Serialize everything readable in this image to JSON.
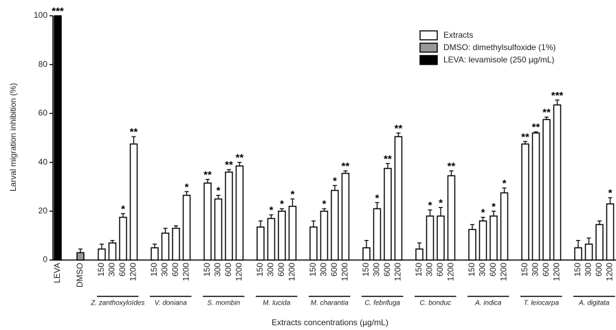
{
  "chart_data": {
    "type": "bar",
    "y_label": "Larval migration inhibition  (%)",
    "x_label": "Extracts concentrations (µg/mL)",
    "ylim": [
      0,
      100
    ],
    "yticks": [
      0,
      20,
      40,
      60,
      80,
      100
    ],
    "categories": [
      "LEVA",
      "DMSO",
      "150",
      "300",
      "600",
      "1200",
      "150",
      "300",
      "600",
      "1200",
      "150",
      "300",
      "600",
      "1200",
      "150",
      "300",
      "600",
      "1200",
      "150",
      "300",
      "600",
      "1200",
      "150",
      "300",
      "600",
      "1200",
      "150",
      "300",
      "600",
      "1200",
      "150",
      "300",
      "600",
      "1200",
      "150",
      "300",
      "600",
      "1200",
      "150",
      "300",
      "600",
      "1200"
    ],
    "groups": [
      "Z. zanthoxyloïdes",
      "V. doniana",
      "S. mombin",
      "M. lucida",
      "M. charantia",
      "C. febrifuga",
      "C. bonduc",
      "A. indica",
      "T. leiocarpa",
      "A. digitata"
    ],
    "series": [
      {
        "name": "Extracts",
        "color": "#ffffff",
        "values": [
          null,
          null,
          4.5,
          7,
          17.5,
          47.5,
          5,
          11,
          13,
          26.5,
          31.5,
          25,
          36,
          38.5,
          13.5,
          17,
          20,
          22,
          13.5,
          20,
          28.5,
          35.5,
          5,
          21,
          37.5,
          50.5,
          4.5,
          18,
          18,
          34.5,
          12.5,
          16,
          18,
          27.5,
          47.5,
          52,
          57.5,
          63.5,
          5,
          6.5,
          14.5,
          23
        ],
        "errors": [
          null,
          null,
          2,
          1,
          1.5,
          3,
          1.5,
          2,
          1,
          1.5,
          1.5,
          1.5,
          1,
          1.5,
          2.5,
          1.5,
          1,
          3,
          2.5,
          1,
          2,
          1,
          3,
          2.5,
          2,
          1.5,
          2.5,
          2.5,
          3.5,
          2,
          2,
          1.5,
          2,
          2,
          1,
          0.5,
          1,
          2,
          3,
          2.5,
          1.5,
          2.5
        ],
        "annotations": [
          null,
          null,
          null,
          null,
          "*",
          "**",
          null,
          null,
          null,
          "*",
          "**",
          "*",
          "**",
          "**",
          null,
          "*",
          "*",
          "*",
          null,
          "*",
          "*",
          "**",
          null,
          "*",
          "**",
          "**",
          null,
          "*",
          "*",
          "**",
          null,
          "*",
          "*",
          "*",
          "**",
          "**",
          "**",
          "***",
          null,
          null,
          null,
          "*"
        ]
      },
      {
        "name": "DMSO: dimethylsulfoxide (1%)",
        "color": "#999999",
        "values": [
          null,
          3,
          null,
          null,
          null,
          null,
          null,
          null,
          null,
          null,
          null,
          null,
          null,
          null,
          null,
          null,
          null,
          null,
          null,
          null,
          null,
          null,
          null,
          null,
          null,
          null,
          null,
          null,
          null,
          null,
          null,
          null,
          null,
          null,
          null,
          null,
          null,
          null,
          null,
          null,
          null,
          null
        ],
        "errors": [
          null,
          1.5,
          null,
          null,
          null,
          null,
          null,
          null,
          null,
          null,
          null,
          null,
          null,
          null,
          null,
          null,
          null,
          null,
          null,
          null,
          null,
          null,
          null,
          null,
          null,
          null,
          null,
          null,
          null,
          null,
          null,
          null,
          null,
          null,
          null,
          null,
          null,
          null,
          null,
          null,
          null,
          null
        ],
        "annotations": [
          null,
          null,
          null,
          null,
          null,
          null,
          null,
          null,
          null,
          null,
          null,
          null,
          null,
          null,
          null,
          null,
          null,
          null,
          null,
          null,
          null,
          null,
          null,
          null,
          null,
          null,
          null,
          null,
          null,
          null,
          null,
          null,
          null,
          null,
          null,
          null,
          null,
          null,
          null,
          null,
          null,
          null
        ]
      },
      {
        "name": "LEVA: levamisole (250 µg/mL)",
        "color": "#000000",
        "values": [
          100,
          null,
          null,
          null,
          null,
          null,
          null,
          null,
          null,
          null,
          null,
          null,
          null,
          null,
          null,
          null,
          null,
          null,
          null,
          null,
          null,
          null,
          null,
          null,
          null,
          null,
          null,
          null,
          null,
          null,
          null,
          null,
          null,
          null,
          null,
          null,
          null,
          null,
          null,
          null,
          null,
          null
        ],
        "errors": [
          null,
          null,
          null,
          null,
          null,
          null,
          null,
          null,
          null,
          null,
          null,
          null,
          null,
          null,
          null,
          null,
          null,
          null,
          null,
          null,
          null,
          null,
          null,
          null,
          null,
          null,
          null,
          null,
          null,
          null,
          null,
          null,
          null,
          null,
          null,
          null,
          null,
          null,
          null,
          null,
          null,
          null
        ],
        "annotations": [
          "***",
          null,
          null,
          null,
          null,
          null,
          null,
          null,
          null,
          null,
          null,
          null,
          null,
          null,
          null,
          null,
          null,
          null,
          null,
          null,
          null,
          null,
          null,
          null,
          null,
          null,
          null,
          null,
          null,
          null,
          null,
          null,
          null,
          null,
          null,
          null,
          null,
          null,
          null,
          null,
          null,
          null
        ]
      }
    ]
  }
}
